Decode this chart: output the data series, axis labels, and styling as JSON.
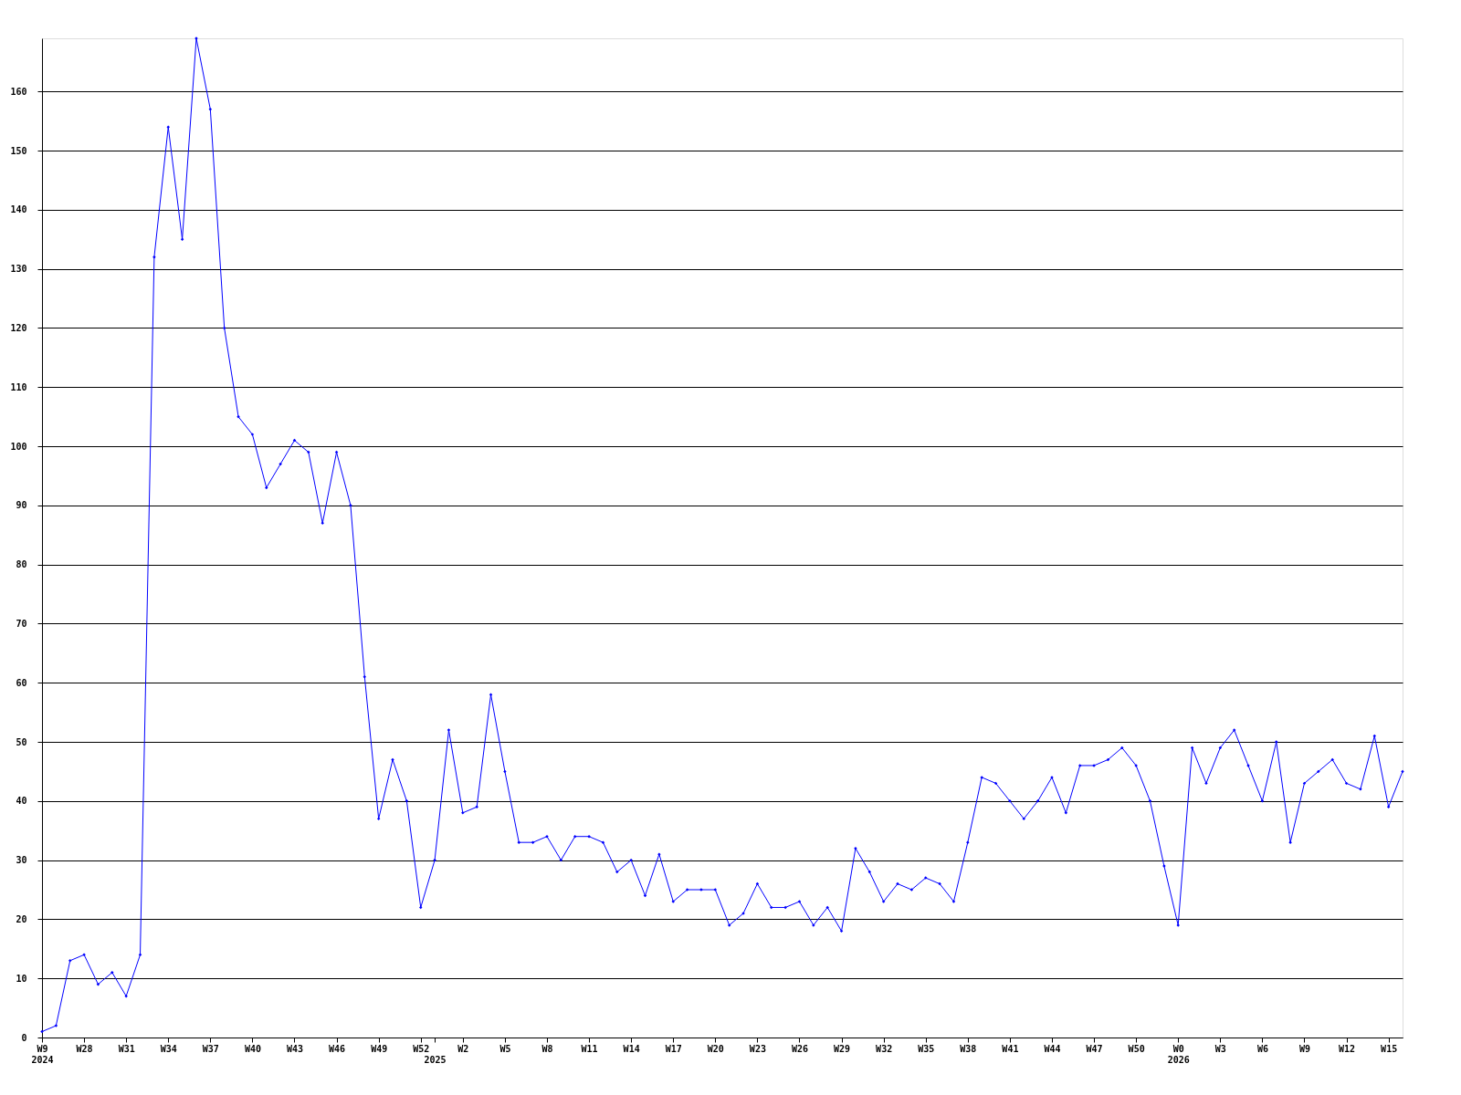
{
  "chart_data": {
    "type": "line",
    "categories": [
      "W9\n2024",
      null,
      null,
      "W28",
      null,
      null,
      "W31",
      null,
      null,
      "W34",
      null,
      null,
      "W37",
      null,
      null,
      "W40",
      null,
      null,
      "W43",
      null,
      null,
      "W46",
      null,
      null,
      "W49",
      null,
      null,
      "W52",
      "\n2025",
      null,
      "W2",
      null,
      null,
      "W5",
      null,
      null,
      "W8",
      null,
      null,
      "W11",
      null,
      null,
      "W14",
      null,
      null,
      "W17",
      null,
      null,
      "W20",
      null,
      null,
      "W23",
      null,
      null,
      "W26",
      null,
      null,
      "W29",
      null,
      null,
      "W32",
      null,
      null,
      "W35",
      null,
      null,
      "W38",
      null,
      null,
      "W41",
      null,
      null,
      "W44",
      null,
      null,
      "W47",
      null,
      null,
      "W50",
      null,
      null,
      "W0\n2026",
      null,
      null,
      "W3",
      null,
      null,
      "W6",
      null,
      null,
      "W9",
      null,
      null,
      "W12",
      null,
      null,
      "W15",
      null
    ],
    "series": [
      {
        "color": "#0000ff",
        "values": [
          1,
          2,
          13,
          14,
          9,
          11,
          7,
          14,
          132,
          154,
          135,
          169,
          157,
          120,
          105,
          102,
          93,
          97,
          101,
          99,
          87,
          99,
          90,
          61,
          37,
          47,
          40,
          22,
          30,
          52,
          38,
          39,
          58,
          45,
          33,
          33,
          34,
          30,
          34,
          34,
          33,
          28,
          30,
          24,
          31,
          23,
          25,
          25,
          25,
          19,
          21,
          26,
          22,
          22,
          23,
          19,
          22,
          18,
          32,
          28,
          23,
          26,
          25,
          27,
          26,
          23,
          33,
          44,
          43,
          40,
          37,
          40,
          44,
          38,
          46,
          46,
          47,
          49,
          46,
          40,
          29,
          19,
          49,
          43,
          49,
          52,
          46,
          40,
          50,
          33,
          43,
          45,
          47,
          43,
          42,
          51,
          39,
          45
        ]
      }
    ],
    "ylim": [
      0,
      169
    ],
    "yticks": [
      0,
      10,
      20,
      30,
      40,
      50,
      60,
      70,
      80,
      90,
      100,
      110,
      120,
      130,
      140,
      150,
      160
    ],
    "grid": "y",
    "marker": "diamond",
    "line_style": "solid",
    "legend": false
  }
}
